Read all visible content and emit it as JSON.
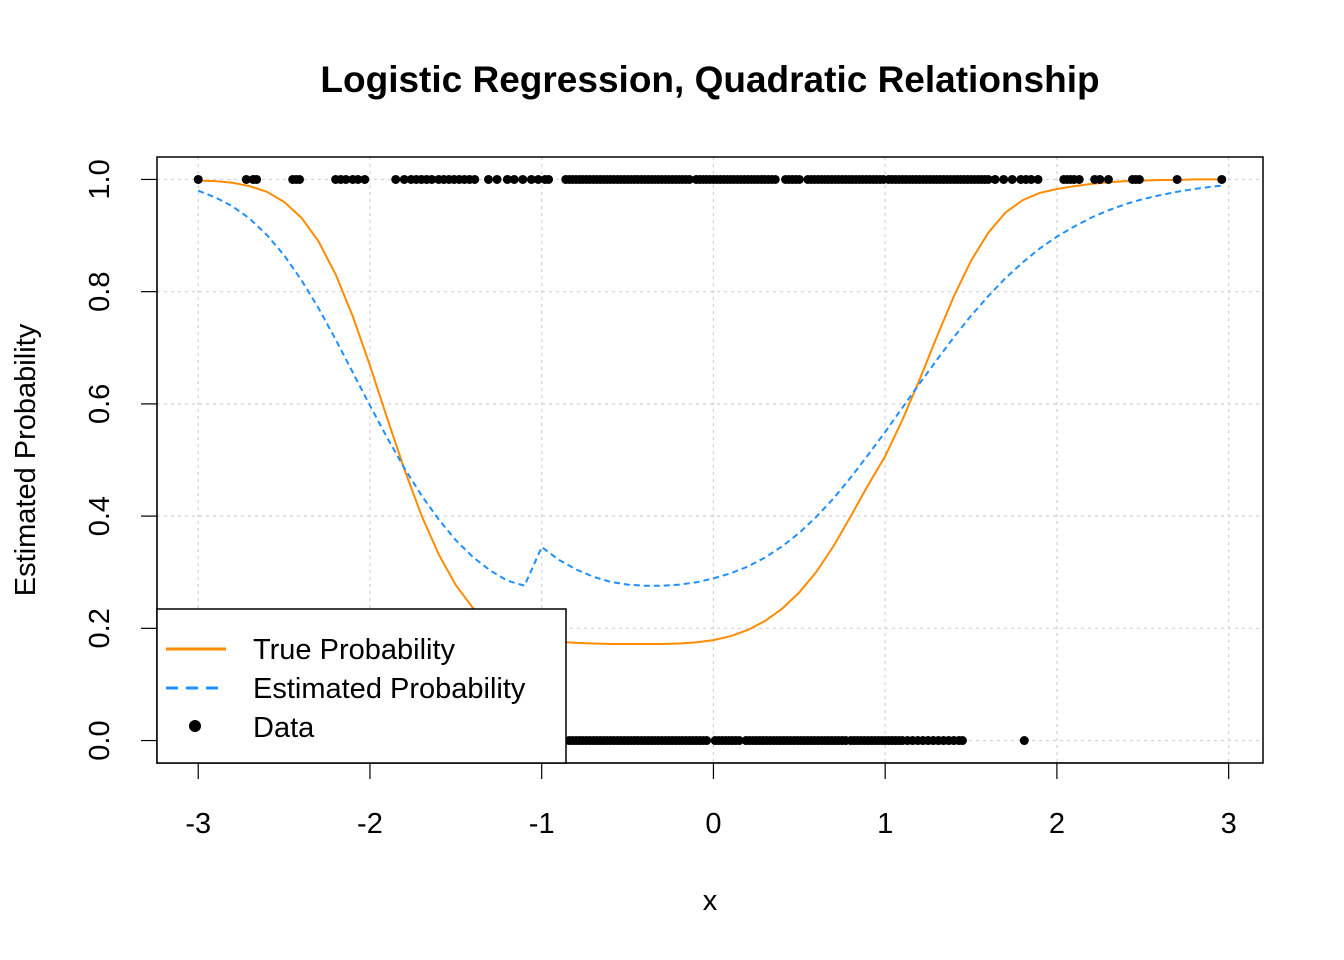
{
  "chart_data": {
    "type": "line",
    "title": "Logistic Regression, Quadratic Relationship",
    "xlabel": "x",
    "ylabel": "Estimated Probability",
    "xlim": [
      -3.24,
      3.2
    ],
    "ylim": [
      -0.04,
      1.04
    ],
    "xticks": [
      -3,
      -2,
      -1,
      0,
      1,
      2,
      3
    ],
    "xtick_labels": [
      "-3",
      "-2",
      "-1",
      "0",
      "1",
      "2",
      "3"
    ],
    "yticks": [
      0.0,
      0.2,
      0.4,
      0.6,
      0.8,
      1.0
    ],
    "ytick_labels": [
      "0.0",
      "0.2",
      "0.4",
      "0.6",
      "0.8",
      "1.0"
    ],
    "grid": true,
    "legend_position": "bottom-left",
    "series": [
      {
        "name": "True Probability",
        "kind": "line",
        "style": "solid",
        "color": "#ff8c00",
        "x": [
          -3.0,
          -2.9,
          -2.8,
          -2.7,
          -2.6,
          -2.5,
          -2.4,
          -2.3,
          -2.2,
          -2.1,
          -2.0,
          -1.9,
          -1.8,
          -1.7,
          -1.6,
          -1.5,
          -1.4,
          -1.3,
          -1.2,
          -1.1,
          -1.0,
          -0.9,
          -0.8,
          -0.7,
          -0.6,
          -0.5,
          -0.4,
          -0.3,
          -0.2,
          -0.1,
          0.0,
          0.1,
          0.2,
          0.3,
          0.4,
          0.5,
          0.6,
          0.7,
          0.8,
          0.9,
          1.0,
          1.1,
          1.2,
          1.3,
          1.4,
          1.5,
          1.6,
          1.7,
          1.8,
          1.9,
          2.0,
          2.1,
          2.2,
          2.3,
          2.4,
          2.5,
          2.6,
          2.7,
          2.8,
          2.9,
          2.96
        ],
        "y": [
          0.998,
          0.997,
          0.994,
          0.988,
          0.978,
          0.96,
          0.932,
          0.89,
          0.831,
          0.756,
          0.668,
          0.575,
          0.484,
          0.401,
          0.332,
          0.277,
          0.236,
          0.208,
          0.192,
          0.183,
          0.179,
          0.176,
          0.174,
          0.173,
          0.172,
          0.172,
          0.172,
          0.172,
          0.173,
          0.175,
          0.179,
          0.186,
          0.197,
          0.213,
          0.235,
          0.264,
          0.301,
          0.347,
          0.4,
          0.455,
          0.507,
          0.571,
          0.643,
          0.719,
          0.792,
          0.855,
          0.905,
          0.941,
          0.963,
          0.976,
          0.983,
          0.988,
          0.992,
          0.995,
          0.997,
          0.998,
          0.999,
          0.999,
          1.0,
          1.0,
          1.0
        ]
      },
      {
        "name": "Estimated Probability",
        "kind": "line",
        "style": "dashed",
        "color": "#1e90ff",
        "x": [
          -3.0,
          -2.9,
          -2.8,
          -2.7,
          -2.6,
          -2.5,
          -2.4,
          -2.3,
          -2.2,
          -2.1,
          -2.0,
          -1.9,
          -1.8,
          -1.7,
          -1.6,
          -1.5,
          -1.4,
          -1.3,
          -1.2,
          -1.1,
          -1.0,
          -0.9,
          -0.8,
          -0.7,
          -0.6,
          -0.5,
          -0.4,
          -0.3,
          -0.2,
          -0.1,
          0.0,
          0.1,
          0.2,
          0.3,
          0.4,
          0.5,
          0.6,
          0.7,
          0.8,
          0.9,
          1.0,
          1.1,
          1.2,
          1.3,
          1.4,
          1.5,
          1.6,
          1.7,
          1.8,
          1.9,
          2.0,
          2.1,
          2.2,
          2.3,
          2.4,
          2.5,
          2.6,
          2.7,
          2.8,
          2.9,
          2.96
        ],
        "y": [
          0.98,
          0.968,
          0.952,
          0.93,
          0.901,
          0.865,
          0.821,
          0.771,
          0.715,
          0.656,
          0.597,
          0.54,
          0.486,
          0.437,
          0.394,
          0.357,
          0.327,
          0.303,
          0.285,
          0.276,
          0.345,
          0.322,
          0.305,
          0.292,
          0.283,
          0.278,
          0.276,
          0.276,
          0.278,
          0.282,
          0.289,
          0.298,
          0.31,
          0.326,
          0.346,
          0.37,
          0.399,
          0.432,
          0.469,
          0.509,
          0.55,
          0.593,
          0.636,
          0.678,
          0.719,
          0.757,
          0.792,
          0.824,
          0.852,
          0.877,
          0.898,
          0.916,
          0.932,
          0.945,
          0.956,
          0.965,
          0.972,
          0.978,
          0.983,
          0.987,
          0.989
        ]
      },
      {
        "name": "Data",
        "kind": "points",
        "color": "#000000",
        "points_y1_x": [
          -3.0,
          -2.72,
          -2.68,
          -2.66,
          -2.45,
          -2.43,
          -2.41,
          -2.2,
          -2.17,
          -2.14,
          -2.1,
          -2.07,
          -2.03,
          -1.85,
          -1.8,
          -1.76,
          -1.73,
          -1.7,
          -1.67,
          -1.64,
          -1.6,
          -1.57,
          -1.54,
          -1.51,
          -1.48,
          -1.45,
          -1.42,
          -1.39,
          -1.31,
          -1.26,
          -1.2,
          -1.16,
          -1.11,
          -1.06,
          -1.02,
          -0.98,
          -0.96,
          -0.86,
          -0.84,
          -0.82,
          -0.8,
          -0.78,
          -0.76,
          -0.74,
          -0.72,
          -0.7,
          -0.68,
          -0.66,
          -0.64,
          -0.62,
          -0.6,
          -0.58,
          -0.56,
          -0.54,
          -0.52,
          -0.5,
          -0.48,
          -0.46,
          -0.44,
          -0.42,
          -0.4,
          -0.38,
          -0.36,
          -0.34,
          -0.32,
          -0.3,
          -0.28,
          -0.26,
          -0.24,
          -0.22,
          -0.2,
          -0.18,
          -0.16,
          -0.14,
          -0.1,
          -0.08,
          -0.06,
          -0.04,
          -0.02,
          0.0,
          0.02,
          0.04,
          0.06,
          0.08,
          0.1,
          0.12,
          0.14,
          0.16,
          0.18,
          0.2,
          0.22,
          0.24,
          0.26,
          0.28,
          0.3,
          0.32,
          0.34,
          0.36,
          0.42,
          0.44,
          0.46,
          0.48,
          0.5,
          0.55,
          0.57,
          0.59,
          0.61,
          0.63,
          0.65,
          0.67,
          0.69,
          0.71,
          0.73,
          0.75,
          0.77,
          0.79,
          0.81,
          0.83,
          0.85,
          0.87,
          0.89,
          0.91,
          0.93,
          0.95,
          0.97,
          0.99,
          1.02,
          1.04,
          1.06,
          1.08,
          1.1,
          1.12,
          1.14,
          1.16,
          1.18,
          1.2,
          1.22,
          1.24,
          1.26,
          1.28,
          1.3,
          1.32,
          1.34,
          1.36,
          1.38,
          1.4,
          1.42,
          1.44,
          1.46,
          1.48,
          1.5,
          1.52,
          1.54,
          1.56,
          1.58,
          1.6,
          1.64,
          1.69,
          1.74,
          1.79,
          1.82,
          1.85,
          1.89,
          2.04,
          2.06,
          2.08,
          2.1,
          2.13,
          2.22,
          2.25,
          2.3,
          2.44,
          2.46,
          2.48,
          2.7,
          2.96
        ],
        "points_y0_x": [
          -0.84,
          -0.82,
          -0.8,
          -0.78,
          -0.76,
          -0.74,
          -0.72,
          -0.7,
          -0.68,
          -0.66,
          -0.64,
          -0.62,
          -0.6,
          -0.58,
          -0.56,
          -0.54,
          -0.52,
          -0.5,
          -0.48,
          -0.46,
          -0.44,
          -0.42,
          -0.4,
          -0.38,
          -0.36,
          -0.34,
          -0.32,
          -0.3,
          -0.28,
          -0.26,
          -0.24,
          -0.22,
          -0.2,
          -0.18,
          -0.16,
          -0.14,
          -0.12,
          -0.1,
          -0.08,
          -0.06,
          -0.04,
          0.01,
          0.03,
          0.05,
          0.07,
          0.09,
          0.11,
          0.13,
          0.15,
          0.19,
          0.21,
          0.23,
          0.25,
          0.27,
          0.29,
          0.31,
          0.33,
          0.35,
          0.37,
          0.39,
          0.41,
          0.43,
          0.45,
          0.47,
          0.49,
          0.51,
          0.53,
          0.55,
          0.57,
          0.59,
          0.61,
          0.63,
          0.65,
          0.67,
          0.69,
          0.71,
          0.73,
          0.75,
          0.77,
          0.8,
          0.82,
          0.84,
          0.86,
          0.88,
          0.9,
          0.92,
          0.94,
          0.96,
          0.98,
          1.0,
          1.02,
          1.04,
          1.06,
          1.08,
          1.1,
          1.13,
          1.16,
          1.19,
          1.22,
          1.25,
          1.28,
          1.31,
          1.34,
          1.37,
          1.4,
          1.43,
          1.45,
          1.81
        ]
      }
    ]
  }
}
